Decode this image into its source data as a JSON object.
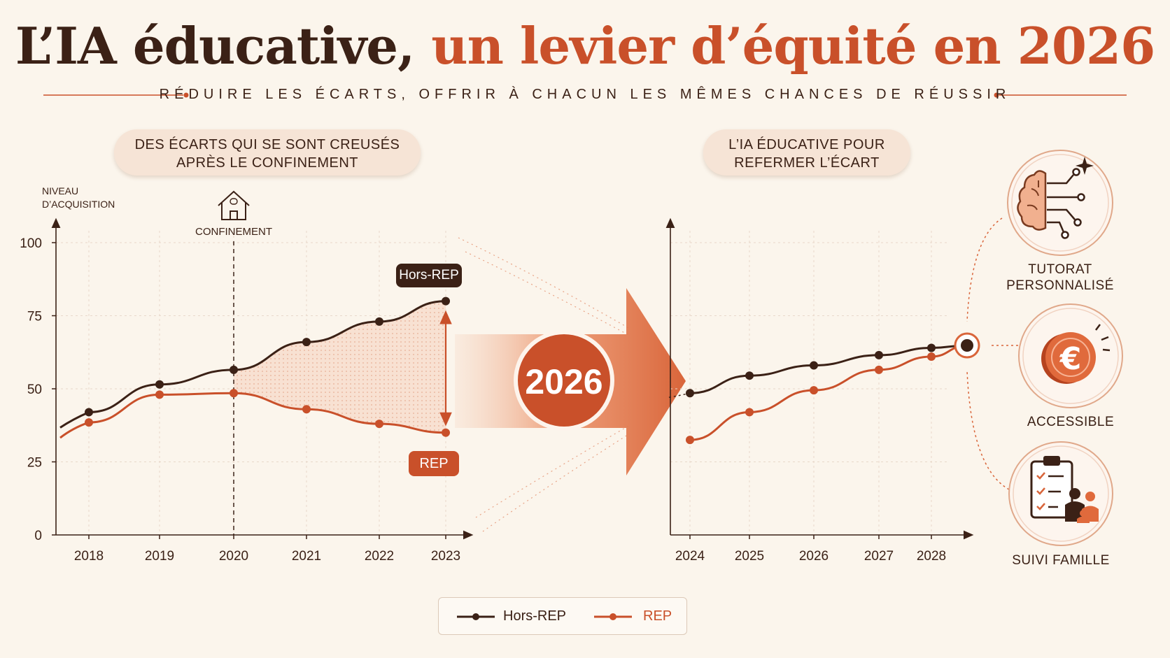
{
  "header": {
    "title_part1": "L’IA éducative,",
    "title_part2": "un levier d’équité en 2026",
    "subtitle": "RÉDUIRE LES ÉCARTS, OFFRIR À CHACUN LES MÊMES CHANCES DE RÉUSSIR"
  },
  "left_panel": {
    "heading_line1": "DES ÉCARTS QUI SE SONT CREUSÉS",
    "heading_line2": "APRÈS LE CONFINEMENT",
    "annotation": "CONFINEMENT",
    "tag_hors_rep": "Hors-REP",
    "tag_rep": "REP"
  },
  "right_panel": {
    "heading_line1": "L’IA ÉDUCATIVE POUR",
    "heading_line2": "REFERMER L’ÉCART"
  },
  "center": {
    "year_badge": "2026"
  },
  "services": [
    {
      "line1": "TUTORAT",
      "line2": "PERSONNALISÉ",
      "icon": "brain-circuit-icon"
    },
    {
      "line1": "ACCESSIBLE",
      "line2": "",
      "icon": "euro-coin-icon"
    },
    {
      "line1": "SUIVI FAMILLE",
      "line2": "",
      "icon": "clipboard-family-icon"
    }
  ],
  "colors": {
    "hors_rep": "#3b2116",
    "rep": "#c9502a",
    "accent_light": "#f0b99c",
    "background": "#fbf5ec"
  },
  "chart_data": [
    {
      "type": "line",
      "ylabel": "NIVEAU D’ACQUISITION",
      "ylim": [
        0,
        100
      ],
      "yticks": [
        0,
        25,
        50,
        75,
        100
      ],
      "x": [
        2018,
        2019,
        2020,
        2021,
        2022,
        2023
      ],
      "grid": true,
      "series": [
        {
          "name": "Hors-REP",
          "values": [
            42,
            51.5,
            56.5,
            66,
            73,
            80
          ]
        },
        {
          "name": "REP",
          "values": [
            38.5,
            48,
            48.5,
            43,
            38,
            35
          ]
        }
      ],
      "annotations": [
        {
          "x": 2020,
          "label": "CONFINEMENT"
        }
      ]
    },
    {
      "type": "line",
      "ylim": [
        0,
        100
      ],
      "x": [
        2024,
        2025,
        2026,
        2027,
        2028
      ],
      "grid": true,
      "series": [
        {
          "name": "Hors-REP",
          "values": [
            48.5,
            54.5,
            58,
            61.5,
            64
          ]
        },
        {
          "name": "REP",
          "values": [
            32.5,
            42,
            49.5,
            56.5,
            61
          ]
        }
      ]
    }
  ],
  "legend": {
    "items": [
      {
        "label": "Hors-REP"
      },
      {
        "label": "REP"
      }
    ]
  }
}
